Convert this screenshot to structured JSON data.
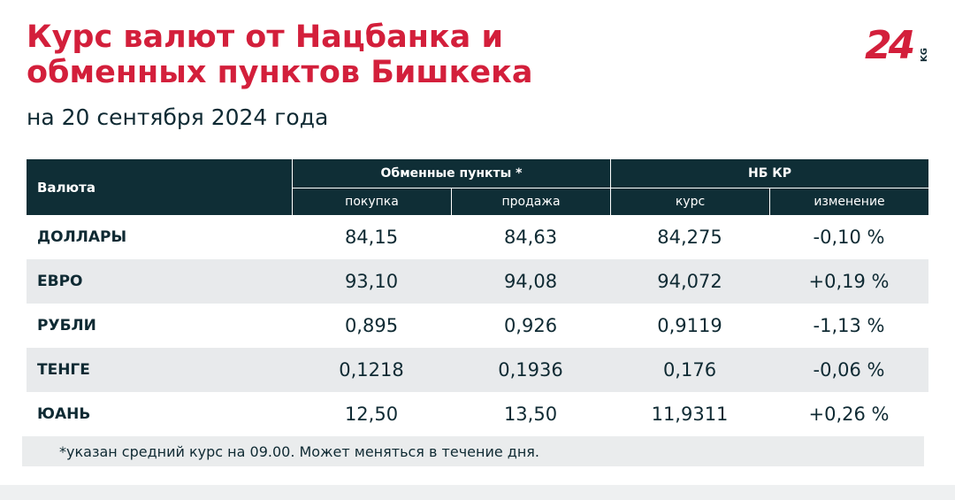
{
  "header": {
    "title_lines": [
      "Курс валют от Нацбанка и",
      "обменных пунктов Бишкека"
    ],
    "subtitle": "на 20 сентября 2024 года"
  },
  "logo": {
    "main": "24",
    "suffix": "KG"
  },
  "table": {
    "currency_header": "Валюта",
    "groups": [
      {
        "label": "Обменные пункты *",
        "columns": [
          "покупка",
          "продажа"
        ]
      },
      {
        "label": "НБ КР",
        "columns": [
          "курс",
          "изменение"
        ]
      }
    ],
    "rows": [
      [
        "ДОЛЛАРЫ",
        "84,15",
        "84,63",
        "84,275",
        "-0,10 %"
      ],
      [
        "ЕВРО",
        "93,10",
        "94,08",
        "94,072",
        "+0,19 %"
      ],
      [
        "РУБЛИ",
        "0,895",
        "0,926",
        "0,9119",
        "-1,13 %"
      ],
      [
        "ТЕНГЕ",
        "0,1218",
        "0,1936",
        "0,176",
        "-0,06 %"
      ],
      [
        "ЮАНЬ",
        "12,50",
        "13,50",
        "11,9311",
        "+0,26 %"
      ]
    ]
  },
  "footnote": "*указан средний курс на 09.00. Может меняться в течение дня."
}
